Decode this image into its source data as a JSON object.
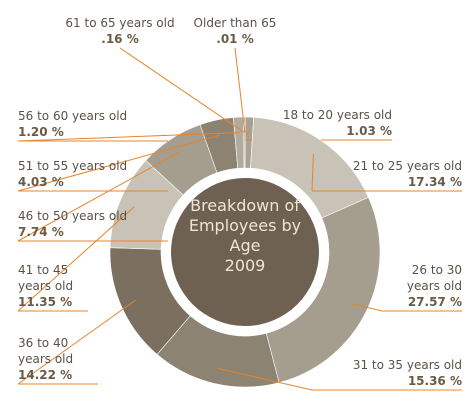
{
  "chart_data": {
    "type": "donut",
    "title": "Breakdown of Employees by Age",
    "subtitle": "2009",
    "categories": [
      "18 to 20 years old",
      "21 to 25 years old",
      "26 to 30 years old",
      "31 to 35 years old",
      "36 to 40 years old",
      "41 to 45 years old",
      "46 to 50 years old",
      "51 to 55 years old",
      "56 to 60 years old",
      "61 to 65 years old",
      "Older than 65"
    ],
    "values": [
      1.03,
      17.34,
      27.57,
      15.36,
      14.22,
      11.35,
      7.74,
      4.03,
      1.2,
      0.16,
      0.01
    ],
    "value_labels": [
      "1.03 %",
      "17.34 %",
      "27.57 %",
      "15.36 %",
      "14.22 %",
      "11.35 %",
      "7.74 %",
      "4.03 %",
      "1.20 %",
      ".16 %",
      ".01 %"
    ],
    "colors": [
      "#a8a293",
      "#c9c3b7",
      "#a59d8e",
      "#8d8373",
      "#7b6f5f",
      "#c9c3b7",
      "#a59d8e",
      "#8d8373",
      "#b2ab9d",
      "#8d8373",
      "#a8a293"
    ]
  }
}
